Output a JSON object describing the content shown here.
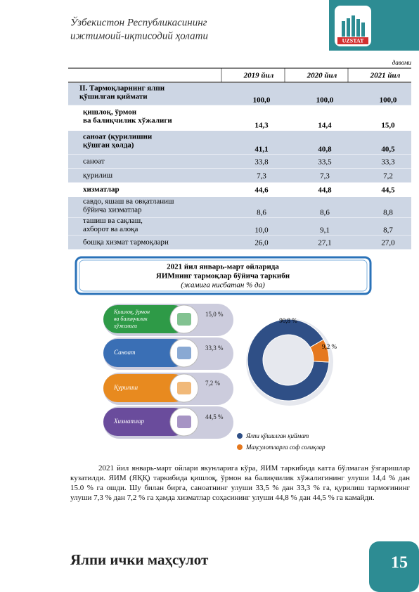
{
  "header": {
    "title_lines": [
      "Ўзбекистон Республикасининг",
      "ижтимоий-иқтисодий ҳолати"
    ],
    "logo_text": "UZSTAT"
  },
  "table": {
    "note": "давоми",
    "columns": [
      "2019 йил",
      "2020 йил",
      "2021 йил"
    ],
    "rows": [
      {
        "lines": [
          "II. Тармоқларнинг ялпи",
          "қўшилган қиймати"
        ],
        "values": [
          "100,0",
          "100,0",
          "100,0"
        ],
        "bold": true,
        "shaded": true
      },
      {
        "lines": [
          "қишлоқ, ўрмон",
          "ва балиқчилик хўжалиги"
        ],
        "values": [
          "14,3",
          "14,4",
          "15,0"
        ],
        "bold": true,
        "shaded": false
      },
      {
        "lines": [
          "саноат (қурилишни",
          "қўшган ҳолда)"
        ],
        "values": [
          "41,1",
          "40,8",
          "40,5"
        ],
        "bold": true,
        "shaded": true
      },
      {
        "lines": [
          "саноат"
        ],
        "values": [
          "33,8",
          "33,5",
          "33,3"
        ],
        "bold": false,
        "shaded": true
      },
      {
        "lines": [
          "қурилиш"
        ],
        "values": [
          "7,3",
          "7,3",
          "7,2"
        ],
        "bold": false,
        "shaded": true
      },
      {
        "lines": [
          "хизматлар"
        ],
        "values": [
          "44,6",
          "44,8",
          "44,5"
        ],
        "bold": true,
        "shaded": false
      },
      {
        "lines": [
          "савдо, яшаш ва овқатланиш",
          "бўйича хизматлар"
        ],
        "values": [
          "8,6",
          "8,6",
          "8,8"
        ],
        "bold": false,
        "shaded": true
      },
      {
        "lines": [
          "ташиш ва сақлаш,",
          "ахборот ва алоқа"
        ],
        "values": [
          "10,0",
          "9,1",
          "8,7"
        ],
        "bold": false,
        "shaded": true
      },
      {
        "lines": [
          "бошқа хизмат тармоқлари"
        ],
        "values": [
          "26,0",
          "27,1",
          "27,0"
        ],
        "bold": false,
        "shaded": true
      }
    ]
  },
  "infographic": {
    "title_lines": [
      "2021 йил январь-март ойларида",
      "ЯИМнинг тармоқлар бўйича таркиби"
    ],
    "subtitle": "(жамига нисбатан % да)",
    "items": [
      {
        "lines": [
          "Қишлоқ, ўрмон",
          "ва балиқчилик",
          "хўжалиги"
        ],
        "value_label": "15,0 %"
      },
      {
        "lines": [
          "Саноат"
        ],
        "value_label": "33,3 %"
      },
      {
        "lines": [
          "Қурилиш"
        ],
        "value_label": "7,2 %"
      },
      {
        "lines": [
          "Хизматлар"
        ],
        "value_label": "44,5 %"
      }
    ]
  },
  "chart_data": {
    "type": "pie",
    "categories": [
      "Ялпи қўшилган қиймат",
      "Маҳсулотларга соф солиқлар"
    ],
    "values": [
      90.8,
      9.2
    ],
    "value_labels": [
      "90,8 %",
      "9,2 %"
    ],
    "colors": [
      "#2f4f86",
      "#e5781e"
    ]
  },
  "paragraph": "2021 йил январь-март ойлари якунларига кўра, ЯИМ таркибида катта бўлмаган ўзгаришлар кузатилди. ЯИМ (ЯҚҚ) таркибида қишлоқ, ўрмон ва балиқчилик хўжалигининг улуши 14,4 % дан 15.0 % га ошди. Шу билан бирга, саноатнинг улуши 33,5 % дан 33,3 % га, қурилиш тармоғининг улуши 7,3 % дан 7,2 % га ҳамда хизматлар соҳасининг улуши 44,8 % дан 44,5 % га камайди.",
  "footer": {
    "title": "Ялпи ички маҳсулот",
    "page": "15"
  }
}
